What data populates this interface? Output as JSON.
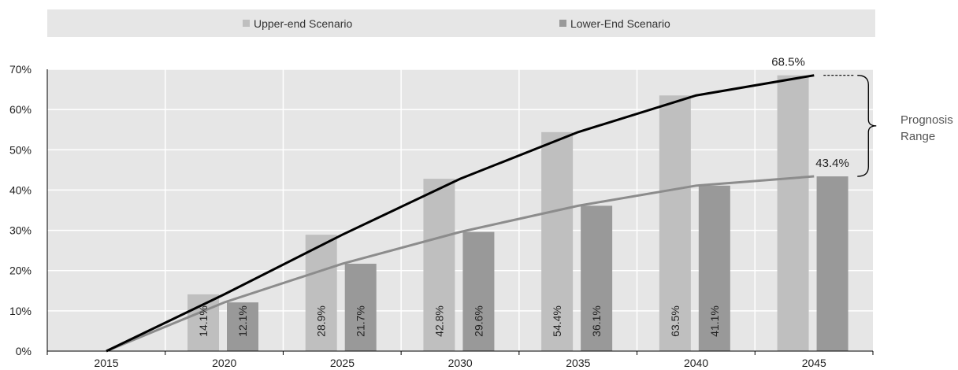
{
  "chart_data": {
    "type": "bar",
    "categories": [
      "2015",
      "2020",
      "2025",
      "2030",
      "2035",
      "2040",
      "2045"
    ],
    "series": [
      {
        "name": "Upper-end Scenario",
        "values": [
          0,
          14.1,
          28.9,
          42.8,
          54.4,
          63.5,
          68.5
        ],
        "labels": [
          "",
          "14.1%",
          "28.9%",
          "42.8%",
          "54.4%",
          "63.5%",
          "68.5%"
        ],
        "color": "#bfbfbf",
        "line_color": "#000000"
      },
      {
        "name": "Lower-End Scenario",
        "values": [
          0,
          12.1,
          21.7,
          29.6,
          36.1,
          41.1,
          43.4
        ],
        "labels": [
          "",
          "12.1%",
          "21.7%",
          "29.6%",
          "36.1%",
          "41.1%",
          "43.4%"
        ],
        "color": "#999999",
        "line_color": "#8c8c8c"
      }
    ],
    "y_ticks": [
      "0%",
      "10%",
      "20%",
      "30%",
      "40%",
      "50%",
      "60%",
      "70%"
    ],
    "ylim": [
      0,
      70
    ],
    "grid": true,
    "legend": "top",
    "plot_background": "#e6e6e6",
    "annotation": {
      "lines": [
        "Prognosis",
        "Range"
      ]
    }
  }
}
